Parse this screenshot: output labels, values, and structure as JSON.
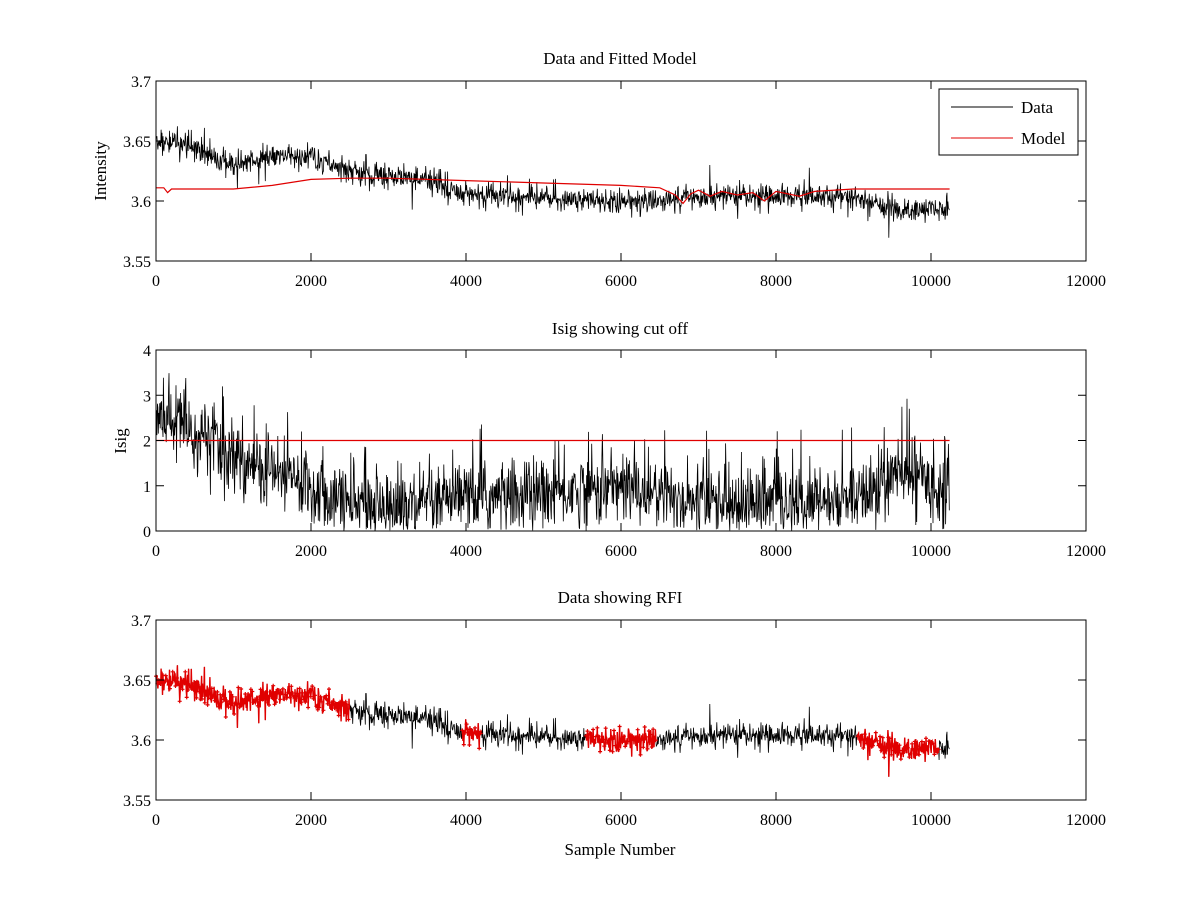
{
  "colors": {
    "data": "#000000",
    "model": "#e00000",
    "cutoff": "#e00000",
    "rfi": "#e00000"
  },
  "chart_data": [
    {
      "type": "line",
      "title": "Data and Fitted Model",
      "xlabel": "",
      "ylabel": "Intensity",
      "xlim": [
        0,
        12000
      ],
      "ylim": [
        3.55,
        3.7
      ],
      "xticks": [
        "0",
        "2000",
        "4000",
        "6000",
        "8000",
        "10000",
        "12000"
      ],
      "yticks": [
        "3.55",
        "3.6",
        "3.65",
        "3.7"
      ],
      "grid": false,
      "legend": {
        "position": "top-right",
        "entries": [
          "Data",
          "Model"
        ]
      },
      "series": [
        {
          "name": "Data",
          "color": "#000000",
          "kind": "noisy",
          "x_end": 10240,
          "trend": [
            [
              0,
              3.65
            ],
            [
              500,
              3.644
            ],
            [
              1000,
              3.63
            ],
            [
              1500,
              3.638
            ],
            [
              2000,
              3.637
            ],
            [
              2500,
              3.625
            ],
            [
              3000,
              3.62
            ],
            [
              3500,
              3.618
            ],
            [
              4000,
              3.605
            ],
            [
              5000,
              3.603
            ],
            [
              6000,
              3.6
            ],
            [
              7000,
              3.603
            ],
            [
              8000,
              3.604
            ],
            [
              9000,
              3.603
            ],
            [
              9600,
              3.592
            ],
            [
              10240,
              3.595
            ]
          ],
          "noise_amplitude": 0.009
        },
        {
          "name": "Model",
          "color": "#e00000",
          "points": [
            [
              0,
              3.611
            ],
            [
              100,
              3.611
            ],
            [
              150,
              3.607
            ],
            [
              200,
              3.61
            ],
            [
              1000,
              3.61
            ],
            [
              1500,
              3.613
            ],
            [
              2000,
              3.618
            ],
            [
              2500,
              3.619
            ],
            [
              3000,
              3.619
            ],
            [
              3500,
              3.618
            ],
            [
              4000,
              3.617
            ],
            [
              5000,
              3.615
            ],
            [
              6000,
              3.613
            ],
            [
              6500,
              3.611
            ],
            [
              6700,
              3.605
            ],
            [
              6800,
              3.598
            ],
            [
              6900,
              3.606
            ],
            [
              7000,
              3.609
            ],
            [
              7150,
              3.604
            ],
            [
              7300,
              3.608
            ],
            [
              7500,
              3.605
            ],
            [
              7700,
              3.607
            ],
            [
              7850,
              3.6
            ],
            [
              8000,
              3.608
            ],
            [
              8300,
              3.604
            ],
            [
              8500,
              3.608
            ],
            [
              9000,
              3.61
            ],
            [
              10240,
              3.61
            ]
          ]
        }
      ]
    },
    {
      "type": "line",
      "title": "Isig showing cut off",
      "xlabel": "",
      "ylabel": "Isig",
      "xlim": [
        0,
        12000
      ],
      "ylim": [
        0,
        4
      ],
      "xticks": [
        "0",
        "2000",
        "4000",
        "6000",
        "8000",
        "10000",
        "12000"
      ],
      "yticks": [
        "0",
        "1",
        "2",
        "3",
        "4"
      ],
      "grid": false,
      "series": [
        {
          "color": "#000000",
          "kind": "noisy-abs",
          "x_end": 10240,
          "trend": [
            [
              0,
              2.6
            ],
            [
              300,
              2.4
            ],
            [
              1000,
              1.6
            ],
            [
              2000,
              1.0
            ],
            [
              2500,
              0.6
            ],
            [
              3500,
              0.5
            ],
            [
              4000,
              0.7
            ],
            [
              5000,
              0.8
            ],
            [
              6000,
              1.0
            ],
            [
              6500,
              0.8
            ],
            [
              7000,
              0.6
            ],
            [
              8000,
              0.6
            ],
            [
              9000,
              0.6
            ],
            [
              9500,
              1.2
            ],
            [
              9800,
              1.3
            ],
            [
              10240,
              0.8
            ]
          ],
          "noise_amplitude": 0.7
        },
        {
          "color": "#e00000",
          "points": [
            [
              0,
              2.0
            ],
            [
              10240,
              2.0
            ]
          ]
        }
      ]
    },
    {
      "type": "line",
      "title": "Data showing RFI",
      "xlabel": "Sample Number",
      "ylabel": "",
      "xlim": [
        0,
        12000
      ],
      "ylim": [
        3.55,
        3.7
      ],
      "xticks": [
        "0",
        "2000",
        "4000",
        "6000",
        "8000",
        "10000",
        "12000"
      ],
      "yticks": [
        "3.55",
        "3.6",
        "3.65",
        "3.7"
      ],
      "grid": false,
      "series": [
        {
          "color": "#000000",
          "kind": "noisy",
          "x_end": 10240,
          "trend": [
            [
              0,
              3.65
            ],
            [
              500,
              3.644
            ],
            [
              1000,
              3.63
            ],
            [
              1500,
              3.638
            ],
            [
              2000,
              3.637
            ],
            [
              2500,
              3.625
            ],
            [
              3000,
              3.62
            ],
            [
              3500,
              3.618
            ],
            [
              4000,
              3.605
            ],
            [
              5000,
              3.603
            ],
            [
              6000,
              3.6
            ],
            [
              7000,
              3.603
            ],
            [
              8000,
              3.604
            ],
            [
              9000,
              3.603
            ],
            [
              9600,
              3.592
            ],
            [
              10240,
              3.595
            ]
          ],
          "noise_amplitude": 0.009
        },
        {
          "color": "#e00000",
          "kind": "markers",
          "ranges": [
            [
              0,
              2500
            ],
            [
              3950,
              4200
            ],
            [
              5550,
              6450
            ],
            [
              9050,
              10100
            ]
          ]
        }
      ]
    }
  ]
}
